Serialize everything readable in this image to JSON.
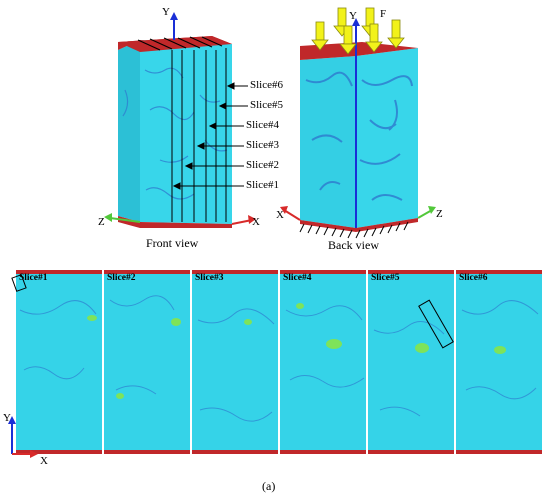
{
  "front": {
    "axis_y": "Y",
    "axis_z": "Z",
    "axis_x": "X",
    "caption": "Front view",
    "slice_labels": [
      "Slice#6",
      "Slice#5",
      "Slice#4",
      "Slice#3",
      "Slice#2",
      "Slice#1"
    ]
  },
  "back": {
    "axis_y": "Y",
    "axis_x": "X",
    "axis_z": "Z",
    "force": "F",
    "caption": "Back view"
  },
  "slices": {
    "labels": [
      "Slice#1",
      "Slice#2",
      "Slice#3",
      "Slice#4",
      "Slice#5",
      "Slice#6"
    ],
    "axis_y": "Y",
    "axis_x": "X"
  },
  "figure_caption": "(a)",
  "colors": {
    "matrix": "#35d3e8",
    "pore": "#2f7fd0",
    "crack_edge": "#c0282a",
    "force_arrow": "#f2f21a",
    "axis_y": "#1a2fd6",
    "axis_x": "#d82a2a",
    "axis_z": "#52c83a"
  }
}
